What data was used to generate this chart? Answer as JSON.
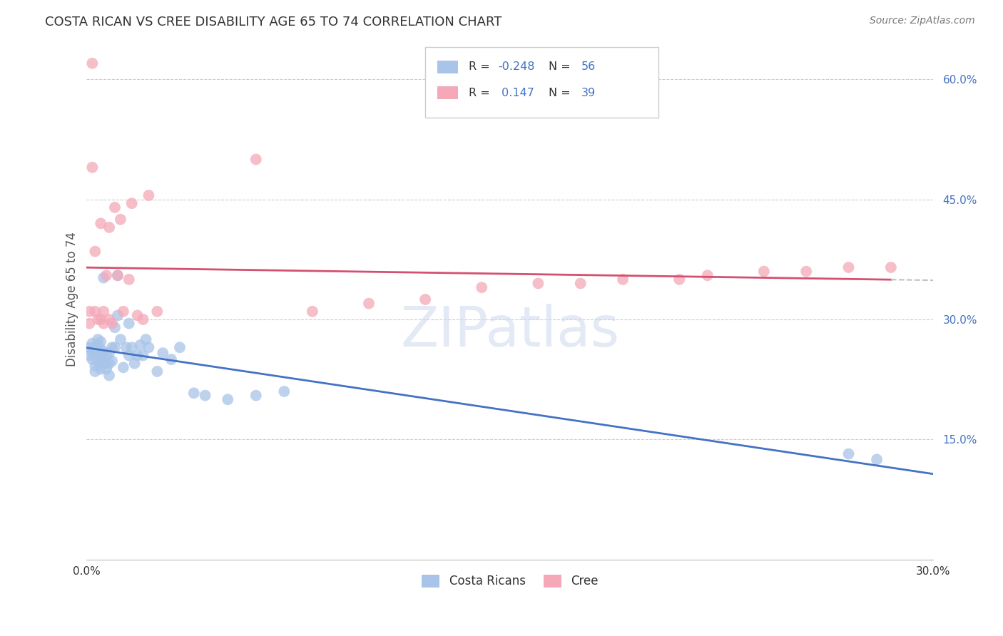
{
  "title": "COSTA RICAN VS CREE DISABILITY AGE 65 TO 74 CORRELATION CHART",
  "source": "Source: ZipAtlas.com",
  "ylabel": "Disability Age 65 to 74",
  "xmin": 0.0,
  "xmax": 0.3,
  "ymin": 0.0,
  "ymax": 0.65,
  "yticks": [
    0.15,
    0.3,
    0.45,
    0.6
  ],
  "ytick_labels": [
    "15.0%",
    "30.0%",
    "45.0%",
    "60.0%"
  ],
  "xticks": [
    0.0,
    0.05,
    0.1,
    0.15,
    0.2,
    0.25,
    0.3
  ],
  "blue_color": "#a8c4e8",
  "pink_color": "#f4a8b8",
  "blue_line_color": "#4472c4",
  "pink_line_color": "#d45070",
  "dashed_line_color": "#c0c0c0",
  "R_blue": -0.248,
  "N_blue": 56,
  "R_pink": 0.147,
  "N_pink": 39,
  "legend_label_blue": "Costa Ricans",
  "legend_label_pink": "Cree",
  "watermark": "ZIPatlas",
  "costa_rican_x": [
    0.001,
    0.001,
    0.002,
    0.002,
    0.002,
    0.003,
    0.003,
    0.003,
    0.003,
    0.004,
    0.004,
    0.004,
    0.004,
    0.005,
    0.005,
    0.005,
    0.005,
    0.005,
    0.006,
    0.006,
    0.006,
    0.007,
    0.007,
    0.007,
    0.008,
    0.008,
    0.008,
    0.009,
    0.009,
    0.01,
    0.01,
    0.011,
    0.011,
    0.012,
    0.013,
    0.014,
    0.015,
    0.015,
    0.016,
    0.017,
    0.018,
    0.019,
    0.02,
    0.021,
    0.022,
    0.025,
    0.027,
    0.03,
    0.033,
    0.038,
    0.042,
    0.05,
    0.06,
    0.07,
    0.27,
    0.28
  ],
  "costa_rican_y": [
    0.265,
    0.255,
    0.27,
    0.26,
    0.25,
    0.265,
    0.258,
    0.242,
    0.235,
    0.258,
    0.248,
    0.268,
    0.275,
    0.262,
    0.255,
    0.245,
    0.238,
    0.272,
    0.352,
    0.26,
    0.248,
    0.255,
    0.245,
    0.238,
    0.258,
    0.245,
    0.23,
    0.265,
    0.248,
    0.29,
    0.265,
    0.355,
    0.305,
    0.275,
    0.24,
    0.265,
    0.295,
    0.255,
    0.265,
    0.245,
    0.255,
    0.268,
    0.255,
    0.275,
    0.265,
    0.235,
    0.258,
    0.25,
    0.265,
    0.208,
    0.205,
    0.2,
    0.205,
    0.21,
    0.132,
    0.125
  ],
  "cree_x": [
    0.001,
    0.001,
    0.002,
    0.002,
    0.003,
    0.003,
    0.004,
    0.005,
    0.005,
    0.006,
    0.006,
    0.007,
    0.008,
    0.008,
    0.009,
    0.01,
    0.011,
    0.012,
    0.013,
    0.015,
    0.016,
    0.018,
    0.02,
    0.022,
    0.025,
    0.06,
    0.08,
    0.1,
    0.12,
    0.14,
    0.16,
    0.175,
    0.19,
    0.21,
    0.22,
    0.24,
    0.255,
    0.27,
    0.285
  ],
  "cree_y": [
    0.31,
    0.295,
    0.62,
    0.49,
    0.31,
    0.385,
    0.3,
    0.42,
    0.3,
    0.31,
    0.295,
    0.355,
    0.3,
    0.415,
    0.295,
    0.44,
    0.355,
    0.425,
    0.31,
    0.35,
    0.445,
    0.305,
    0.3,
    0.455,
    0.31,
    0.5,
    0.31,
    0.32,
    0.325,
    0.34,
    0.345,
    0.345,
    0.35,
    0.35,
    0.355,
    0.36,
    0.36,
    0.365,
    0.365
  ]
}
